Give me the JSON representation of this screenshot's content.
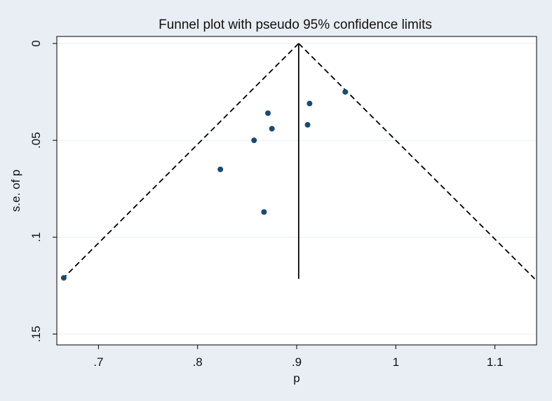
{
  "chart_data": {
    "type": "scatter",
    "title": "Funnel plot with pseudo 95% confidence limits",
    "xlabel": "p",
    "ylabel": "s.e. of p",
    "xlim": [
      0.658,
      1.142
    ],
    "ylim": [
      0,
      0.152
    ],
    "y_reversed": true,
    "grid": true,
    "x_ticks": [
      {
        "value": 0.7,
        "label": ".7"
      },
      {
        "value": 0.8,
        "label": ".8"
      },
      {
        "value": 0.9,
        "label": ".9"
      },
      {
        "value": 1.0,
        "label": "1"
      },
      {
        "value": 1.1,
        "label": "1.1"
      }
    ],
    "y_ticks": [
      {
        "value": 0,
        "label": "0"
      },
      {
        "value": 0.05,
        "label": ".05"
      },
      {
        "value": 0.1,
        "label": ".1"
      },
      {
        "value": 0.15,
        "label": ".15"
      }
    ],
    "points": [
      {
        "x": 0.949,
        "y": 0.025
      },
      {
        "x": 0.913,
        "y": 0.031
      },
      {
        "x": 0.871,
        "y": 0.036
      },
      {
        "x": 0.875,
        "y": 0.044
      },
      {
        "x": 0.911,
        "y": 0.042
      },
      {
        "x": 0.857,
        "y": 0.05
      },
      {
        "x": 0.823,
        "y": 0.065
      },
      {
        "x": 0.867,
        "y": 0.087
      },
      {
        "x": 0.665,
        "y": 0.121
      }
    ],
    "pooled_estimate": 0.902,
    "funnel_max_se": 0.1215,
    "colors": {
      "background": "#e8eef3",
      "plot_background": "#ffffff",
      "points": "#1a4a73",
      "lines": "#000000",
      "grid": "#e8eef3"
    }
  }
}
